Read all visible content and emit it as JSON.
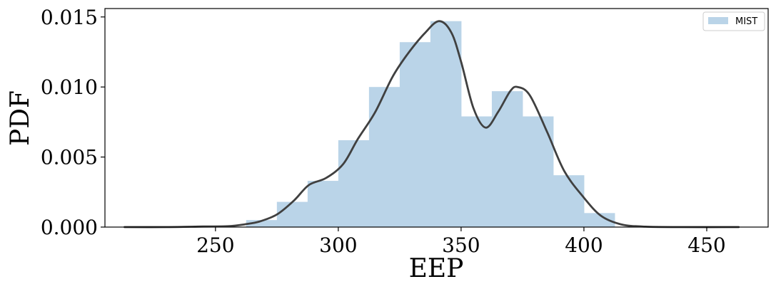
{
  "chart_data": {
    "type": "bar",
    "xlabel": "EEP",
    "ylabel": "PDF",
    "xlim": [
      205,
      475
    ],
    "ylim": [
      0,
      0.0156
    ],
    "xticks": [
      250,
      300,
      350,
      400,
      450
    ],
    "xtick_labels": [
      "250",
      "300",
      "350",
      "400",
      "450"
    ],
    "yticks": [
      0.0,
      0.005,
      0.01,
      0.015
    ],
    "ytick_labels": [
      "0.000",
      "0.005",
      "0.010",
      "0.015"
    ],
    "legend": {
      "placement": "top-right",
      "entries": [
        {
          "label": "MIST",
          "color": "#bad4e8"
        }
      ]
    },
    "histogram": {
      "name": "MIST",
      "color": "#bad4e8",
      "bin_edges": [
        262.5,
        275,
        287.5,
        300,
        312.5,
        325,
        337.5,
        350,
        362.5,
        375,
        387.5,
        400,
        412.5
      ],
      "values": [
        0.0005,
        0.0018,
        0.0033,
        0.0062,
        0.01,
        0.0132,
        0.0147,
        0.0079,
        0.0097,
        0.0079,
        0.0037,
        0.001
      ]
    },
    "kde_curve": {
      "color": "#404040",
      "x": [
        213,
        230,
        245,
        255,
        262,
        268,
        275,
        282,
        288,
        295,
        302,
        308,
        315,
        322,
        328,
        335,
        341,
        346,
        350,
        355,
        360,
        365,
        370,
        373,
        378,
        385,
        392,
        400,
        407,
        415,
        425,
        440,
        463
      ],
      "y": [
        0.0,
        0.0,
        4e-05,
        6e-05,
        0.0002,
        0.0004,
        0.0009,
        0.0019,
        0.003,
        0.0035,
        0.0045,
        0.0063,
        0.0082,
        0.0107,
        0.0123,
        0.0138,
        0.0147,
        0.0139,
        0.0118,
        0.0085,
        0.0071,
        0.0082,
        0.0097,
        0.01,
        0.0094,
        0.0068,
        0.004,
        0.0021,
        0.0008,
        0.0002,
        3e-05,
        0.0,
        0.0
      ]
    }
  }
}
